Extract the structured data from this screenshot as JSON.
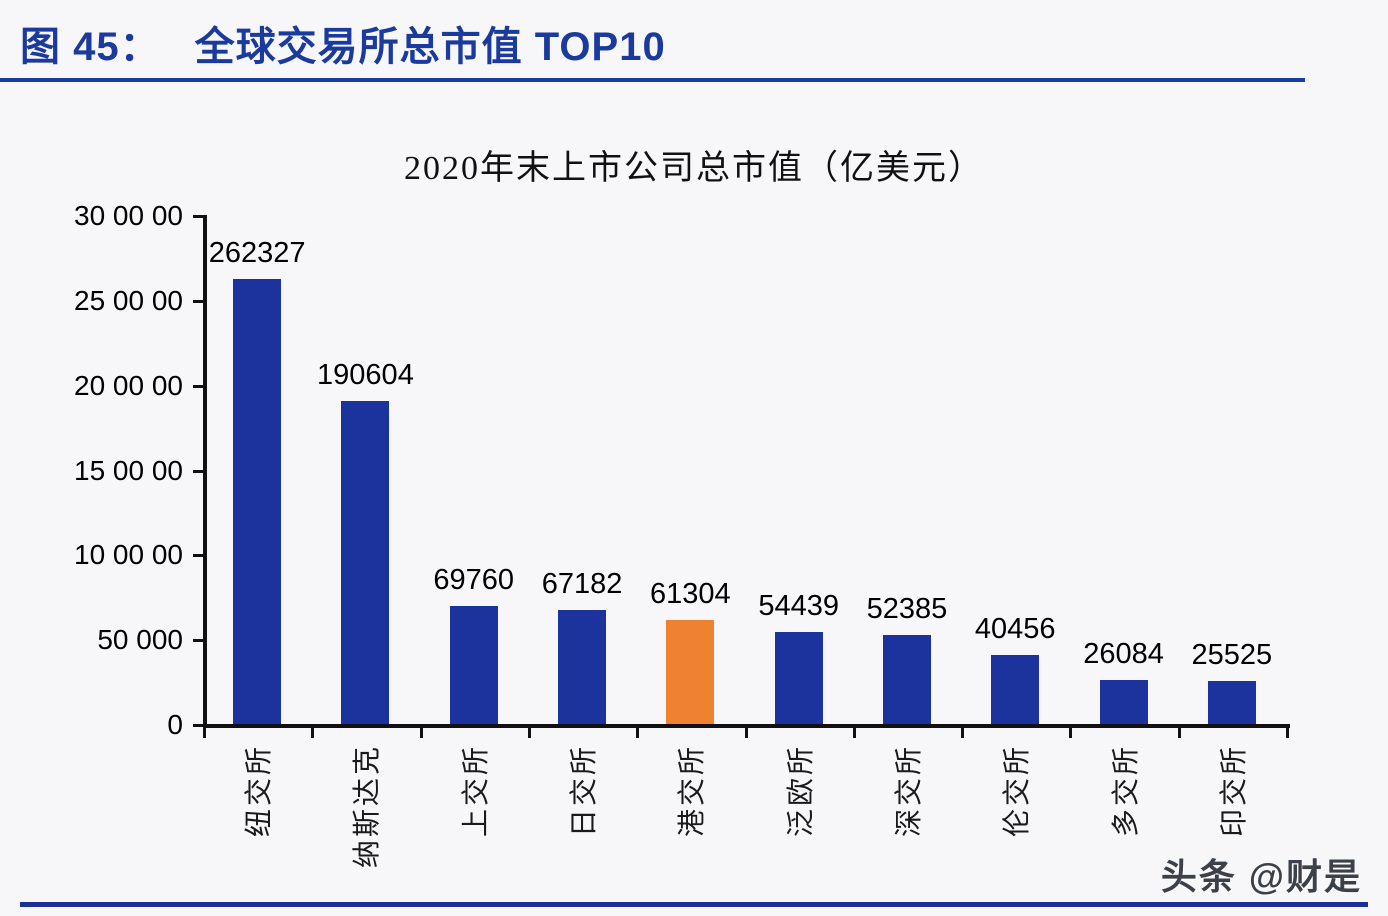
{
  "header": {
    "figure_label": "图 45：",
    "title": "全球交易所总市值 TOP10"
  },
  "watermark": "头条 @财是",
  "chart_data": {
    "type": "bar",
    "title": "2020年末上市公司总市值（亿美元）",
    "categories": [
      "纽交所",
      "纳斯达克",
      "上交所",
      "日交所",
      "港交所",
      "泛欧所",
      "深交所",
      "伦交所",
      "多交所",
      "印交所"
    ],
    "values": [
      262327,
      190604,
      69760,
      67182,
      61304,
      54439,
      52385,
      40456,
      26084,
      25525
    ],
    "value_labels": [
      "262327",
      "190604",
      "69760",
      "67182",
      "61304",
      "54439",
      "52385",
      "40456",
      "26084",
      "25525"
    ],
    "highlight_index": 4,
    "ylim": [
      0,
      300000
    ],
    "ytick_interval": 50000,
    "yticks": [
      {
        "value": 0,
        "label": "0"
      },
      {
        "value": 50000,
        "label": "50 000"
      },
      {
        "value": 100000,
        "label": "10 00 00"
      },
      {
        "value": 150000,
        "label": "15 00 00"
      },
      {
        "value": 200000,
        "label": "20 00 00"
      },
      {
        "value": 250000,
        "label": "25 00 00"
      },
      {
        "value": 300000,
        "label": "30 00 00"
      }
    ],
    "grid": false,
    "legend": false,
    "colors": {
      "bar_default": "#1c339e",
      "bar_highlight": "#ef8231",
      "axis": "#111111",
      "header_accent": "#1b3a9e"
    }
  }
}
